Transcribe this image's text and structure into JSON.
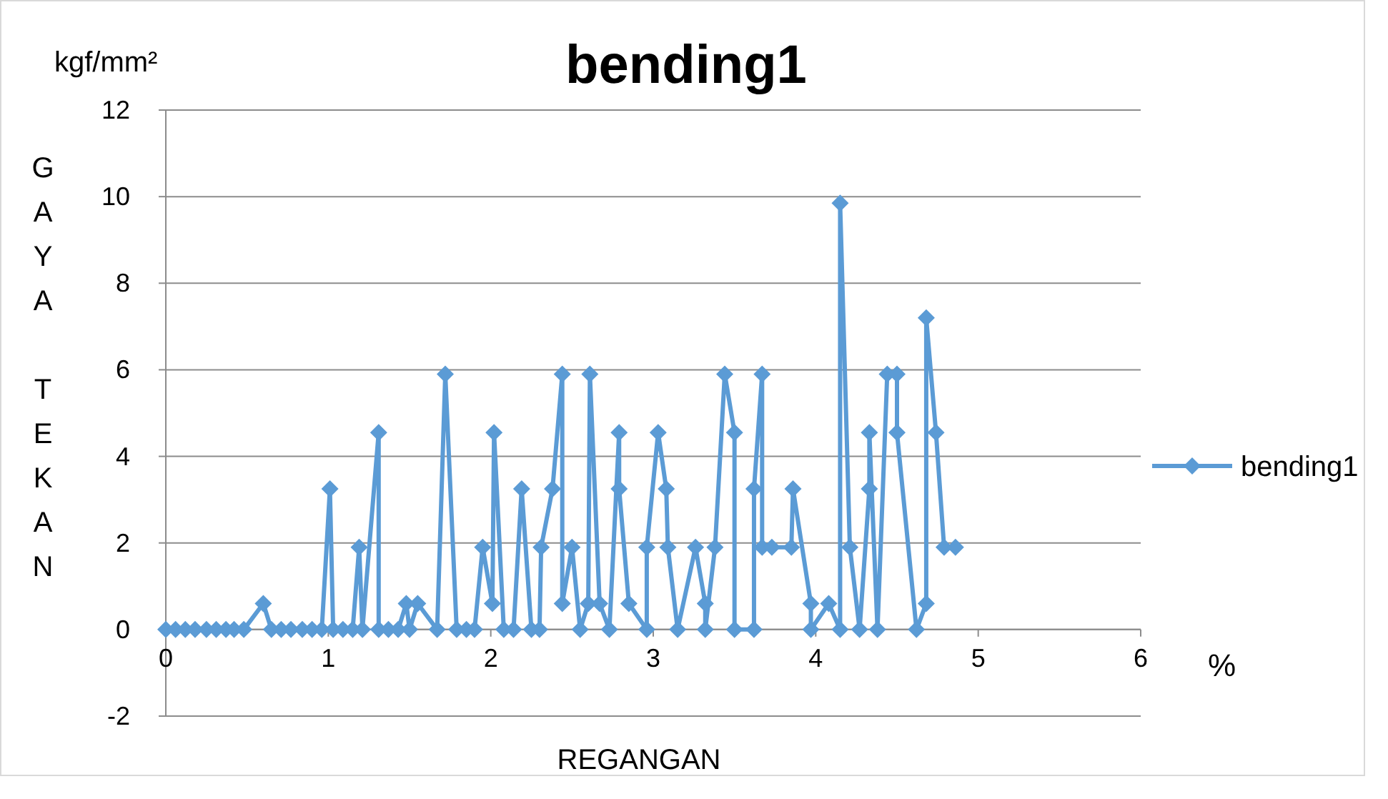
{
  "chart_data": {
    "type": "line",
    "title": "bending1",
    "xlabel": "REGANGAN",
    "ylabel": "GAYA TEKAN",
    "annotations": [
      "kgf/mm²",
      "%"
    ],
    "xlim": [
      0,
      6
    ],
    "xticks": [
      0,
      1,
      2,
      3,
      4,
      5,
      6
    ],
    "ylim": [
      -2,
      12
    ],
    "yticks": [
      -2,
      0,
      2,
      4,
      6,
      8,
      10,
      12
    ],
    "grid": "y",
    "legend": "right",
    "marker": "diamond",
    "line_style": "solid",
    "series": [
      {
        "name": "bending1",
        "color": "#5b9bd5",
        "x": [
          0,
          0.06,
          0.12,
          0.18,
          0.25,
          0.31,
          0.37,
          0.42,
          0.48,
          0.6,
          0.65,
          0.71,
          0.77,
          0.84,
          0.9,
          0.96,
          1.01,
          1.03,
          1.09,
          1.15,
          1.19,
          1.21,
          1.31,
          1.31,
          1.37,
          1.43,
          1.48,
          1.5,
          1.55,
          1.67,
          1.72,
          1.79,
          1.85,
          1.9,
          1.95,
          2.01,
          2.02,
          2.08,
          2.14,
          2.19,
          2.25,
          2.3,
          2.31,
          2.38,
          2.44,
          2.44,
          2.5,
          2.55,
          2.6,
          2.61,
          2.67,
          2.73,
          2.79,
          2.79,
          2.85,
          2.96,
          2.96,
          3.03,
          3.08,
          3.09,
          3.15,
          3.26,
          3.32,
          3.32,
          3.38,
          3.44,
          3.5,
          3.5,
          3.62,
          3.62,
          3.67,
          3.67,
          3.73,
          3.85,
          3.86,
          3.97,
          3.97,
          4.08,
          4.15,
          4.15,
          4.21,
          4.27,
          4.33,
          4.33,
          4.38,
          4.44,
          4.5,
          4.5,
          4.62,
          4.68,
          4.68,
          4.74,
          4.79,
          4.86
        ],
        "values": [
          0,
          0,
          0,
          0,
          0,
          0,
          0,
          0,
          0,
          0.6,
          0,
          0,
          0,
          0,
          0,
          0,
          3.25,
          0,
          0,
          0,
          1.9,
          0,
          4.55,
          0,
          0,
          0,
          0.6,
          0,
          0.6,
          0,
          5.9,
          0,
          0,
          0,
          1.9,
          0.6,
          4.55,
          0,
          0,
          3.25,
          0,
          0,
          1.9,
          3.25,
          5.9,
          0.6,
          1.9,
          0,
          0.6,
          5.9,
          0.6,
          0,
          4.55,
          3.25,
          0.6,
          0,
          1.9,
          4.55,
          3.25,
          1.9,
          0,
          1.9,
          0.6,
          0,
          1.9,
          5.9,
          4.55,
          0,
          0,
          3.25,
          5.9,
          1.9,
          1.9,
          1.9,
          3.25,
          0.6,
          0,
          0.6,
          0,
          9.85,
          1.9,
          0,
          3.25,
          4.55,
          0,
          5.9,
          5.9,
          4.55,
          0,
          0.6,
          7.2,
          4.55,
          1.9,
          1.9
        ]
      }
    ]
  }
}
